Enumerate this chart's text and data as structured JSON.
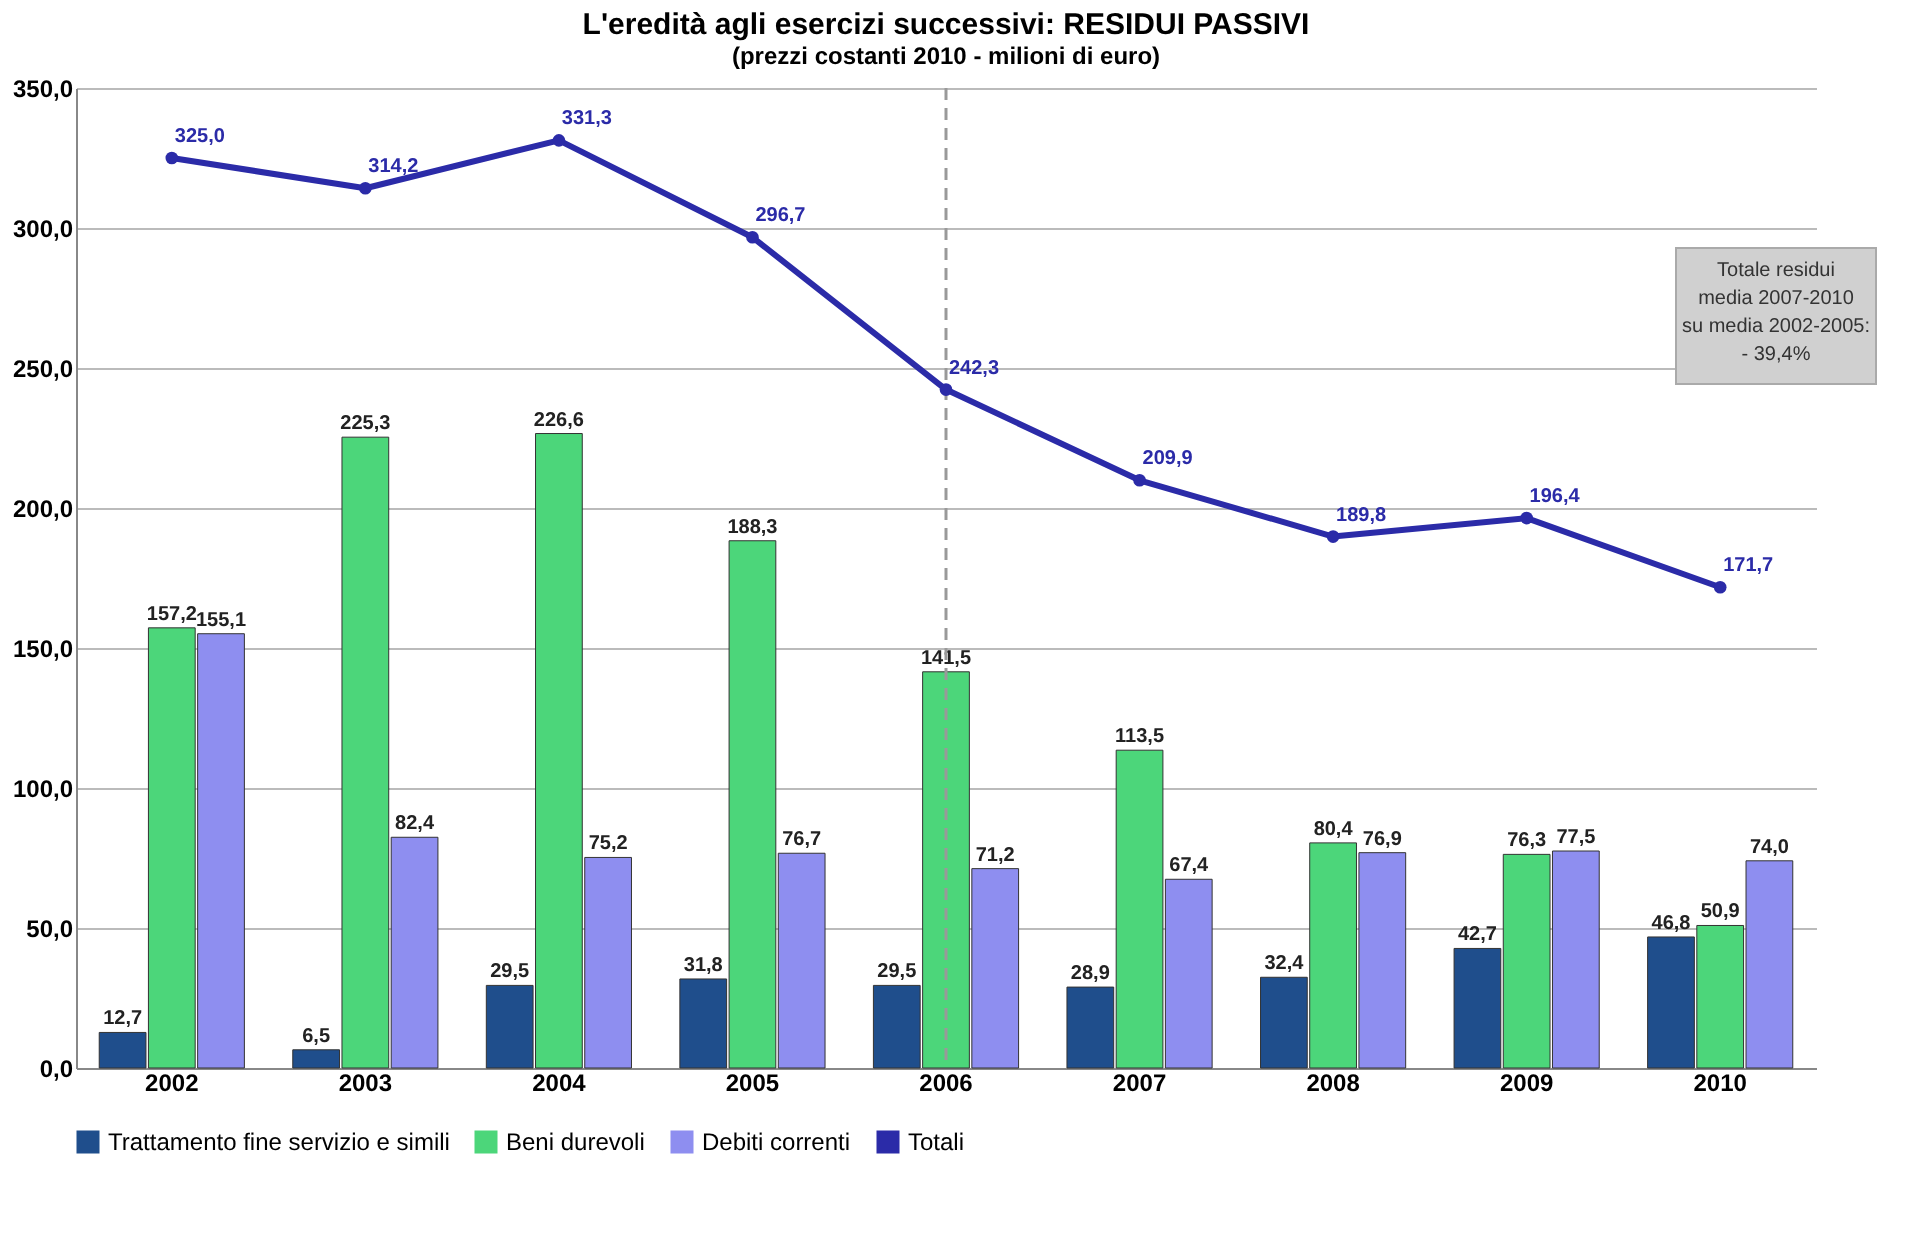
{
  "chart_data": {
    "type": "bar",
    "title": "L'eredità agli esercizi successivi: RESIDUI PASSIVI",
    "subtitle": "(prezzi costanti 2010 - milioni di euro)",
    "categories": [
      "2002",
      "2003",
      "2004",
      "2005",
      "2006",
      "2007",
      "2008",
      "2009",
      "2010"
    ],
    "series": [
      {
        "name": "Trattamento fine servizio e simili",
        "color": "#1f4e8c",
        "values": [
          12.7,
          6.5,
          29.5,
          31.8,
          29.5,
          28.9,
          32.4,
          42.7,
          46.8
        ],
        "value_labels": [
          "12,7",
          "6,5",
          "29,5",
          "31,8",
          "29,5",
          "28,9",
          "32,4",
          "42,7",
          "46,8"
        ]
      },
      {
        "name": "Beni durevoli",
        "color": "#4cd67a",
        "values": [
          157.2,
          225.3,
          226.6,
          188.3,
          141.5,
          113.5,
          80.4,
          76.3,
          50.9
        ],
        "value_labels": [
          "157,2",
          "225,3",
          "226,6",
          "188,3",
          "141,5",
          "113,5",
          "80,4",
          "76,3",
          "50,9"
        ]
      },
      {
        "name": "Debiti correnti",
        "color": "#8e8ef0",
        "values": [
          155.1,
          82.4,
          75.2,
          76.7,
          71.2,
          67.4,
          76.9,
          77.5,
          74.0
        ],
        "value_labels": [
          "155,1",
          "82,4",
          "75,2",
          "76,7",
          "71,2",
          "67,4",
          "76,9",
          "77,5",
          "74,0"
        ]
      },
      {
        "name": "Totali",
        "type": "line",
        "marker": "circle",
        "color": "#2b2ba8",
        "values": [
          325.0,
          314.2,
          331.3,
          296.7,
          242.3,
          209.9,
          189.8,
          196.4,
          171.7
        ],
        "value_labels": [
          "325,0",
          "314,2",
          "331,3",
          "296,7",
          "242,3",
          "209,9",
          "189,8",
          "196,4",
          "171,7"
        ]
      }
    ],
    "ylim": [
      0,
      350
    ],
    "yticks": [
      {
        "value": 0,
        "label": "0,0"
      },
      {
        "value": 50,
        "label": "50,0"
      },
      {
        "value": 100,
        "label": "100,0"
      },
      {
        "value": 150,
        "label": "150,0"
      },
      {
        "value": 200,
        "label": "200,0"
      },
      {
        "value": 250,
        "label": "250,0"
      },
      {
        "value": 300,
        "label": "300,0"
      },
      {
        "value": 350,
        "label": "350,0"
      }
    ],
    "ref_lines": [
      {
        "axis": "x",
        "value": "2006",
        "color": "#999999",
        "line_style": "dashed"
      }
    ],
    "annotations": [
      "Totale residui\nmedia  2007-2010\nsu media 2002-2005:\n- 39,4%"
    ],
    "grid": "y",
    "legend": "bottom"
  }
}
